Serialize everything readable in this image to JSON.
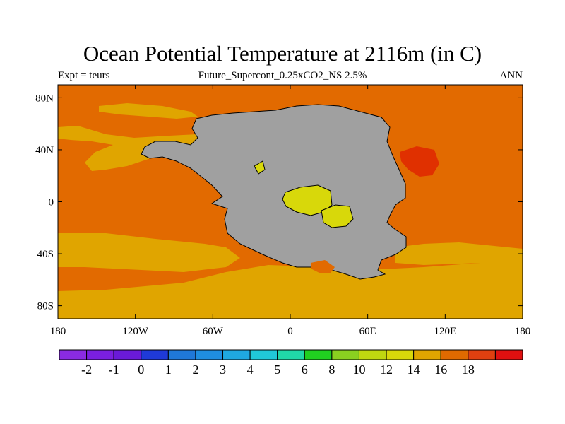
{
  "title": "Ocean Potential Temperature at 2116m (in C)",
  "subtitle_left": "Expt = teurs",
  "subtitle_center": "Future_Supercont_0.25xCO2_NS 2.5%",
  "subtitle_right": "ANN",
  "map": {
    "lon_range": [
      -180,
      180
    ],
    "lat_range": [
      -90,
      90
    ],
    "lon_ticks": [
      {
        "value": -180,
        "label": "180"
      },
      {
        "value": -120,
        "label": "120W"
      },
      {
        "value": -60,
        "label": "60W"
      },
      {
        "value": 0,
        "label": "0"
      },
      {
        "value": 60,
        "label": "60E"
      },
      {
        "value": 120,
        "label": "120E"
      },
      {
        "value": 180,
        "label": "180"
      }
    ],
    "lat_ticks": [
      {
        "value": 80,
        "label": "80N"
      },
      {
        "value": 40,
        "label": "40N"
      },
      {
        "value": 0,
        "label": "0"
      },
      {
        "value": -40,
        "label": "40S"
      },
      {
        "value": -80,
        "label": "80S"
      }
    ],
    "colors": {
      "land": "#a0a0a0",
      "temp_12_14": "#d8d80a",
      "temp_14_16": "#e0a500",
      "temp_16_18": "#e26a00",
      "temp_18_plus": "#e03000"
    }
  },
  "colorbar": {
    "colors": [
      "#8a2be2",
      "#7a1fe0",
      "#6a1ad8",
      "#1f3ad8",
      "#1f78d8",
      "#1f8ee0",
      "#1fa8e0",
      "#20c8d8",
      "#20d8a8",
      "#20d020",
      "#8ad020",
      "#c0d810",
      "#d8d80a",
      "#e0a500",
      "#e06a00",
      "#e04010",
      "#e01010"
    ],
    "labels": [
      "-2",
      "-1",
      "0",
      "1",
      "2",
      "3",
      "4",
      "5",
      "6",
      "8",
      "10",
      "12",
      "14",
      "16",
      "18"
    ]
  }
}
